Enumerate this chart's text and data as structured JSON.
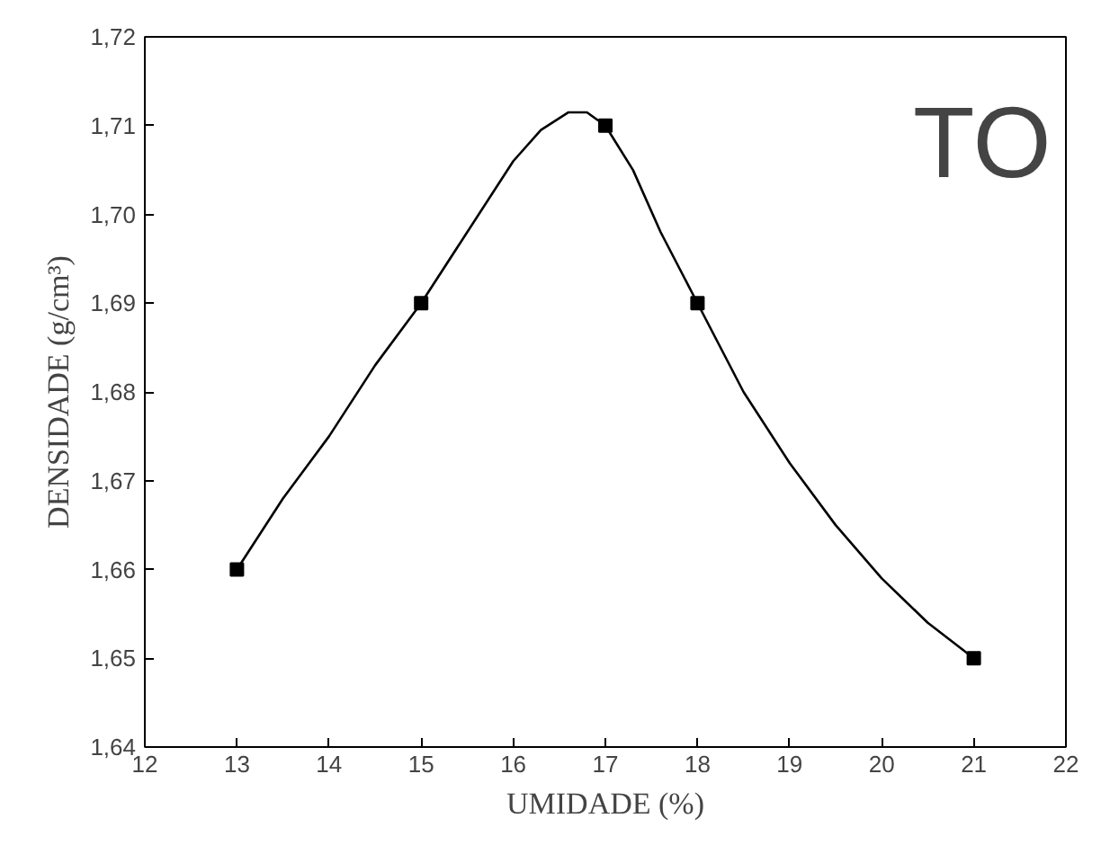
{
  "chart_data": {
    "type": "scatter",
    "xlabel": "UMIDADE (%)",
    "ylabel": "DENSIDADE (g/cm³)",
    "x": [
      13,
      15,
      17,
      18,
      21
    ],
    "series": [
      {
        "type": "line",
        "color": "#000000",
        "x": [
          13,
          13.5,
          14,
          14.5,
          15,
          15.5,
          16,
          16.3,
          16.6,
          16.8,
          17,
          17.3,
          17.6,
          18,
          18.5,
          19,
          19.5,
          20,
          20.5,
          21
        ],
        "values": [
          1.66,
          1.668,
          1.675,
          1.683,
          1.69,
          1.698,
          1.706,
          1.7095,
          1.7115,
          1.7115,
          1.71,
          1.705,
          1.698,
          1.69,
          1.68,
          1.672,
          1.665,
          1.659,
          1.654,
          1.65
        ]
      },
      {
        "color": "#000000",
        "marker": "square",
        "values": [
          1.66,
          1.69,
          1.71,
          1.69,
          1.65
        ]
      }
    ],
    "line_style": "solid",
    "grid": false,
    "annotations": [
      "TO"
    ],
    "xlim": [
      12,
      22
    ],
    "xticks": [
      12,
      13,
      14,
      15,
      16,
      17,
      18,
      19,
      20,
      21,
      22
    ],
    "ylim": [
      1.64,
      1.72
    ],
    "yticks": [
      {
        "value": 1.64,
        "label": "1,64"
      },
      {
        "value": 1.65,
        "label": "1,65"
      },
      {
        "value": 1.66,
        "label": "1,66"
      },
      {
        "value": 1.67,
        "label": "1,67"
      },
      {
        "value": 1.68,
        "label": "1,68"
      },
      {
        "value": 1.69,
        "label": "1,69"
      },
      {
        "value": 1.7,
        "label": "1,70"
      },
      {
        "value": 1.71,
        "label": "1,71"
      },
      {
        "value": 1.72,
        "label": "1,72"
      }
    ]
  }
}
